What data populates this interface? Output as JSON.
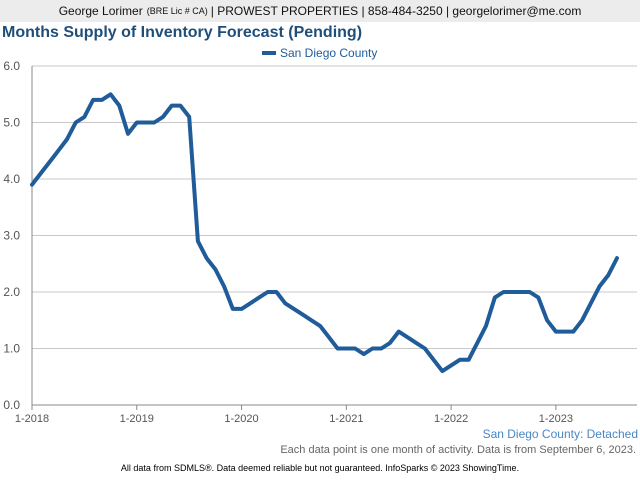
{
  "header": {
    "name": "George Lorimer",
    "license": "(BRE Lic # CA)",
    "rest": "| PROWEST PROPERTIES | 858-484-3250 | georgelorimer@me.com"
  },
  "chart_data": {
    "type": "line",
    "title": "Months Supply of Inventory Forecast (Pending)",
    "xlabel": "",
    "ylabel": "",
    "ylim": [
      0,
      6
    ],
    "yticks": [
      "0.0",
      "1.0",
      "2.0",
      "3.0",
      "4.0",
      "5.0",
      "6.0"
    ],
    "xticks": [
      "1-2018",
      "1-2019",
      "1-2020",
      "1-2021",
      "1-2022",
      "1-2023"
    ],
    "grid": true,
    "legend_position": "top-center",
    "color": "#1f5c99",
    "series": [
      {
        "name": "San Diego County",
        "x": [
          "2018-01",
          "2018-02",
          "2018-03",
          "2018-04",
          "2018-05",
          "2018-06",
          "2018-07",
          "2018-08",
          "2018-09",
          "2018-10",
          "2018-11",
          "2018-12",
          "2019-01",
          "2019-02",
          "2019-03",
          "2019-04",
          "2019-05",
          "2019-06",
          "2019-07",
          "2019-08",
          "2019-09",
          "2019-10",
          "2019-11",
          "2019-12",
          "2020-01",
          "2020-02",
          "2020-03",
          "2020-04",
          "2020-05",
          "2020-06",
          "2020-07",
          "2020-08",
          "2020-09",
          "2020-10",
          "2020-11",
          "2020-12",
          "2021-01",
          "2021-02",
          "2021-03",
          "2021-04",
          "2021-05",
          "2021-06",
          "2021-07",
          "2021-08",
          "2021-09",
          "2021-10",
          "2021-11",
          "2021-12",
          "2022-01",
          "2022-02",
          "2022-03",
          "2022-04",
          "2022-05",
          "2022-06",
          "2022-07",
          "2022-08",
          "2022-09",
          "2022-10",
          "2022-11",
          "2022-12",
          "2023-01",
          "2023-02",
          "2023-03",
          "2023-04",
          "2023-05",
          "2023-06",
          "2023-07",
          "2023-08"
        ],
        "values": [
          3.9,
          4.1,
          4.3,
          4.5,
          4.7,
          5.0,
          5.1,
          5.4,
          5.4,
          5.5,
          5.3,
          4.8,
          5.0,
          5.0,
          5.0,
          5.1,
          5.3,
          5.3,
          5.1,
          2.9,
          2.6,
          2.4,
          2.1,
          1.7,
          1.7,
          1.8,
          1.9,
          2.0,
          2.0,
          1.8,
          1.7,
          1.6,
          1.5,
          1.4,
          1.2,
          1.0,
          1.0,
          1.0,
          0.9,
          1.0,
          1.0,
          1.1,
          1.3,
          1.2,
          1.1,
          1.0,
          0.8,
          0.6,
          0.7,
          0.8,
          0.8,
          1.1,
          1.4,
          1.9,
          2.0,
          2.0,
          2.0,
          2.0,
          1.9,
          1.5,
          1.3,
          1.3,
          1.3,
          1.5,
          1.8,
          2.1,
          2.3,
          2.6
        ]
      }
    ]
  },
  "area_label": "San Diego County: Detached",
  "note": "Each data point is one month of activity. Data is from September 6, 2023.",
  "footer": "All data from SDMLS®. Data deemed reliable but not guaranteed. InfoSparks © 2023 ShowingTime."
}
